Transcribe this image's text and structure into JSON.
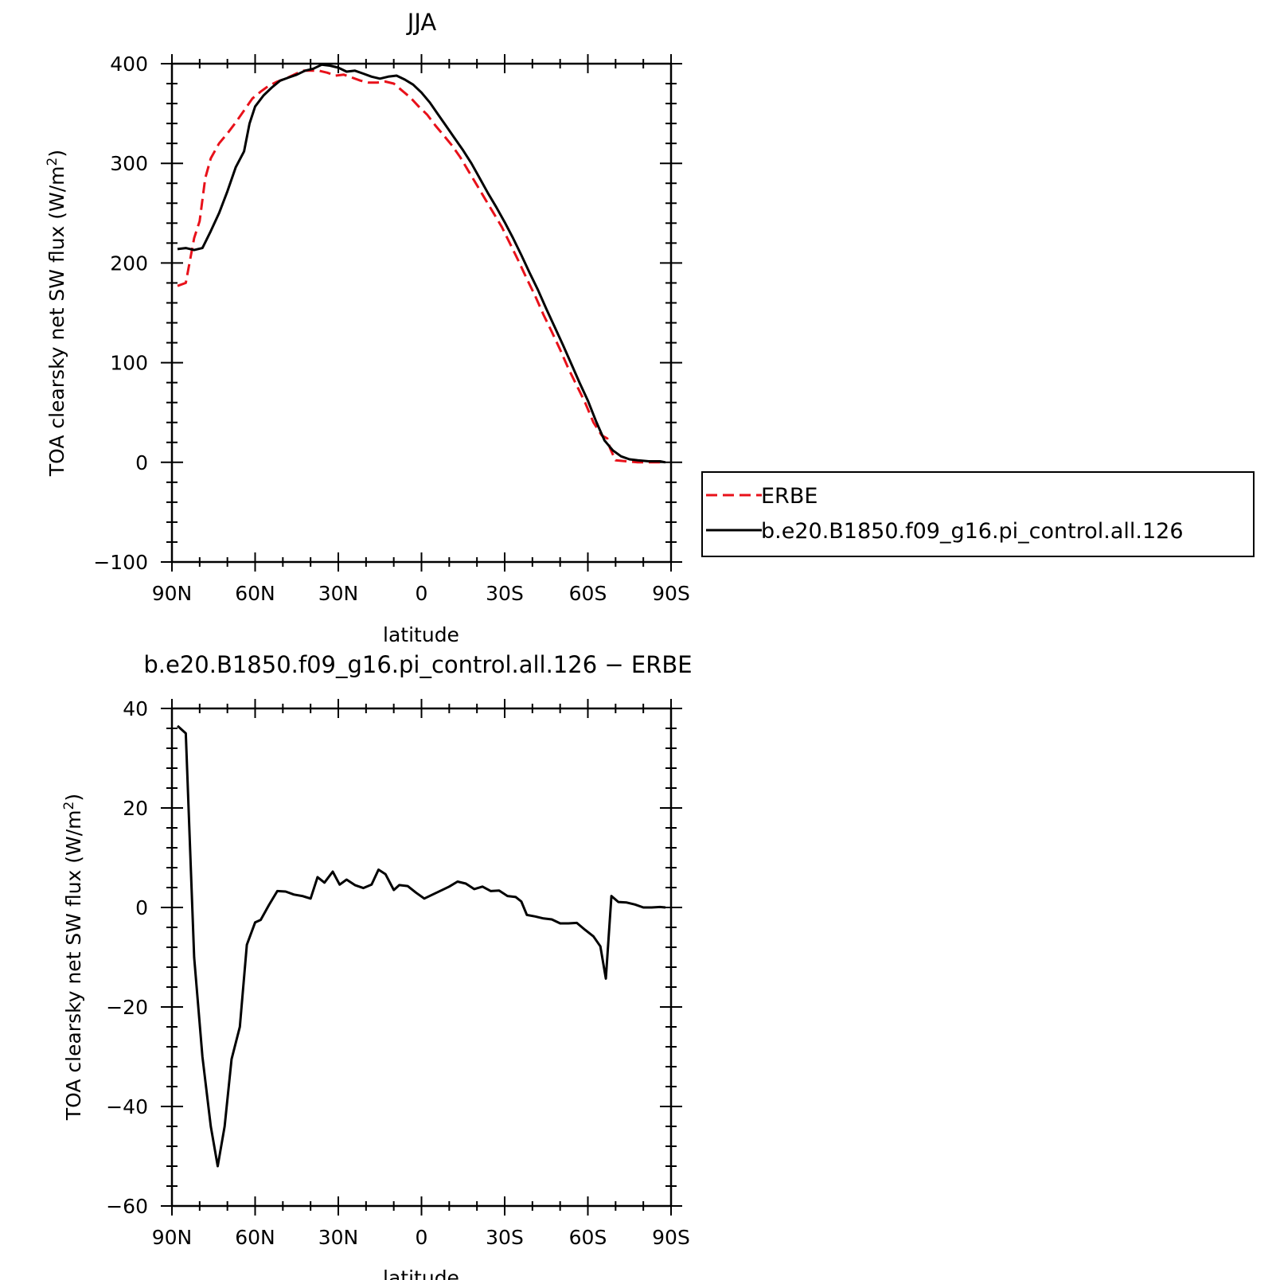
{
  "colors": {
    "background": "#ffffff",
    "axis": "#000000",
    "erbe": "#e8111a",
    "model": "#000000"
  },
  "chart_data": [
    {
      "type": "line",
      "title": "JJA",
      "xlabel": "latitude",
      "ylabel": "TOA clearsky net SW flux (W/m²)",
      "ylabel_main": "TOA clearsky net SW flux (W/m",
      "ylabel_sup": "2",
      "ylabel_close": ")",
      "xlim": [
        90,
        -90
      ],
      "ylim": [
        -100,
        400
      ],
      "grid": false,
      "legend_position": "right",
      "xticks": [
        {
          "value": 90,
          "label": "90N"
        },
        {
          "value": 60,
          "label": "60N"
        },
        {
          "value": 30,
          "label": "30N"
        },
        {
          "value": 0,
          "label": "0"
        },
        {
          "value": -30,
          "label": "30S"
        },
        {
          "value": -60,
          "label": "60S"
        },
        {
          "value": -90,
          "label": "90S"
        }
      ],
      "yticks": [
        {
          "value": 400,
          "label": "400"
        },
        {
          "value": 300,
          "label": "300"
        },
        {
          "value": 200,
          "label": "200"
        },
        {
          "value": 100,
          "label": "100"
        },
        {
          "value": 0,
          "label": "0"
        },
        {
          "value": -100,
          "label": "−100"
        }
      ],
      "series": [
        {
          "name": "ERBE",
          "color": "#e8111a",
          "dashed": true,
          "points": [
            [
              88,
              177
            ],
            [
              85,
              180
            ],
            [
              82,
              225
            ],
            [
              80,
              242
            ],
            [
              78,
              285
            ],
            [
              76,
              305
            ],
            [
              73,
              320
            ],
            [
              70,
              330
            ],
            [
              67,
              341
            ],
            [
              64,
              353
            ],
            [
              61,
              365
            ],
            [
              58,
              372
            ],
            [
              55,
              378
            ],
            [
              52,
              382
            ],
            [
              49,
              385
            ],
            [
              46,
              389
            ],
            [
              43,
              393
            ],
            [
              40,
              393
            ],
            [
              37,
              393
            ],
            [
              34,
              391
            ],
            [
              31,
              388
            ],
            [
              28,
              389
            ],
            [
              25,
              386
            ],
            [
              22,
              383
            ],
            [
              19,
              381
            ],
            [
              16,
              381
            ],
            [
              13,
              382
            ],
            [
              10,
              380
            ],
            [
              7,
              373
            ],
            [
              4,
              366
            ],
            [
              1,
              357
            ],
            [
              -2,
              349
            ],
            [
              -5,
              338
            ],
            [
              -8,
              328
            ],
            [
              -11,
              318
            ],
            [
              -14,
              306
            ],
            [
              -17,
              292
            ],
            [
              -20,
              278
            ],
            [
              -23,
              264
            ],
            [
              -26,
              250
            ],
            [
              -29,
              236
            ],
            [
              -32,
              219
            ],
            [
              -35,
              202
            ],
            [
              -38,
              184
            ],
            [
              -41,
              167
            ],
            [
              -44,
              148
            ],
            [
              -47,
              131
            ],
            [
              -50,
              113
            ],
            [
              -53,
              94
            ],
            [
              -56,
              77
            ],
            [
              -59,
              60
            ],
            [
              -62,
              40
            ],
            [
              -65,
              27
            ],
            [
              -67,
              24
            ],
            [
              -68,
              14
            ],
            [
              -70,
              2
            ],
            [
              -74,
              1
            ],
            [
              -78,
              0
            ],
            [
              -82,
              0
            ],
            [
              -88,
              0
            ]
          ]
        },
        {
          "name": "b.e20.B1850.f09_g16.pi_control.all.126",
          "color": "#000000",
          "dashed": false,
          "points": [
            [
              88,
              214
            ],
            [
              85,
              215
            ],
            [
              82,
              213
            ],
            [
              79,
              215
            ],
            [
              76,
              232
            ],
            [
              73,
              250
            ],
            [
              70,
              272
            ],
            [
              67,
              296
            ],
            [
              64,
              312
            ],
            [
              62,
              340
            ],
            [
              60,
              357
            ],
            [
              57,
              368
            ],
            [
              54,
              376
            ],
            [
              51,
              383
            ],
            [
              48,
              386
            ],
            [
              45,
              389
            ],
            [
              42,
              393
            ],
            [
              39,
              395
            ],
            [
              36,
              399
            ],
            [
              33,
              398
            ],
            [
              30,
              396
            ],
            [
              27,
              392
            ],
            [
              24,
              393
            ],
            [
              21,
              390
            ],
            [
              18,
              387
            ],
            [
              15,
              385
            ],
            [
              12,
              387
            ],
            [
              9,
              388
            ],
            [
              6,
              384
            ],
            [
              3,
              379
            ],
            [
              0,
              371
            ],
            [
              -3,
              361
            ],
            [
              -6,
              349
            ],
            [
              -9,
              337
            ],
            [
              -12,
              325
            ],
            [
              -15,
              313
            ],
            [
              -18,
              300
            ],
            [
              -21,
              285
            ],
            [
              -24,
              270
            ],
            [
              -27,
              256
            ],
            [
              -30,
              241
            ],
            [
              -33,
              225
            ],
            [
              -36,
              208
            ],
            [
              -39,
              190
            ],
            [
              -42,
              173
            ],
            [
              -45,
              154
            ],
            [
              -48,
              136
            ],
            [
              -51,
              118
            ],
            [
              -54,
              99
            ],
            [
              -57,
              80
            ],
            [
              -60,
              62
            ],
            [
              -63,
              41
            ],
            [
              -66,
              22
            ],
            [
              -69,
              12
            ],
            [
              -72,
              6
            ],
            [
              -75,
              3
            ],
            [
              -78,
              2
            ],
            [
              -82,
              1
            ],
            [
              -86,
              1
            ],
            [
              -88,
              0
            ]
          ]
        }
      ]
    },
    {
      "type": "line",
      "title": "b.e20.B1850.f09_g16.pi_control.all.126 − ERBE",
      "xlabel": "latitude",
      "ylabel": "TOA clearsky net SW flux (W/m²)",
      "ylabel_main": "TOA clearsky net SW flux (W/m",
      "ylabel_sup": "2",
      "ylabel_close": ")",
      "xlim": [
        90,
        -90
      ],
      "ylim": [
        -60,
        40
      ],
      "grid": false,
      "xticks": [
        {
          "value": 90,
          "label": "90N"
        },
        {
          "value": 60,
          "label": "60N"
        },
        {
          "value": 30,
          "label": "30N"
        },
        {
          "value": 0,
          "label": "0"
        },
        {
          "value": -30,
          "label": "30S"
        },
        {
          "value": -60,
          "label": "60S"
        },
        {
          "value": -90,
          "label": "90S"
        }
      ],
      "yticks": [
        {
          "value": 40,
          "label": "40"
        },
        {
          "value": 20,
          "label": "20"
        },
        {
          "value": 0,
          "label": "0"
        },
        {
          "value": -20,
          "label": "−20"
        },
        {
          "value": -40,
          "label": "−40"
        },
        {
          "value": -60,
          "label": "−60"
        }
      ],
      "series": [
        {
          "color": "#000000",
          "dashed": false,
          "points": [
            [
              88,
              36.5
            ],
            [
              85,
              35
            ],
            [
              82,
              -10
            ],
            [
              79,
              -30
            ],
            [
              76,
              -44
            ],
            [
              73.5,
              -52
            ],
            [
              71,
              -44
            ],
            [
              68.5,
              -30.5
            ],
            [
              65.5,
              -24
            ],
            [
              63,
              -7.5
            ],
            [
              60,
              -3
            ],
            [
              58,
              -2.5
            ],
            [
              55,
              0.5
            ],
            [
              52,
              3.3
            ],
            [
              49,
              3.2
            ],
            [
              46,
              2.6
            ],
            [
              43,
              2.3
            ],
            [
              40,
              1.8
            ],
            [
              37.5,
              6.1
            ],
            [
              35,
              5
            ],
            [
              32,
              7.2
            ],
            [
              29.5,
              4.6
            ],
            [
              27,
              5.6
            ],
            [
              24,
              4.5
            ],
            [
              21,
              3.9
            ],
            [
              18,
              4.6
            ],
            [
              15.5,
              7.6
            ],
            [
              13,
              6.7
            ],
            [
              10,
              3.5
            ],
            [
              8,
              4.5
            ],
            [
              5,
              4.3
            ],
            [
              2,
              3
            ],
            [
              -1,
              1.8
            ],
            [
              -4,
              2.6
            ],
            [
              -7,
              3.4
            ],
            [
              -10,
              4.2
            ],
            [
              -13,
              5.2
            ],
            [
              -16,
              4.8
            ],
            [
              -19,
              3.7
            ],
            [
              -22,
              4.2
            ],
            [
              -25,
              3.3
            ],
            [
              -28,
              3.4
            ],
            [
              -31,
              2.3
            ],
            [
              -34,
              2.1
            ],
            [
              -36,
              1.2
            ],
            [
              -38,
              -1.5
            ],
            [
              -41,
              -1.8
            ],
            [
              -44,
              -2.2
            ],
            [
              -47,
              -2.4
            ],
            [
              -50,
              -3.2
            ],
            [
              -53,
              -3.2
            ],
            [
              -56,
              -3.1
            ],
            [
              -59,
              -4.5
            ],
            [
              -62,
              -5.8
            ],
            [
              -64.5,
              -7.8
            ],
            [
              -66.5,
              -14.3
            ],
            [
              -68.5,
              2.3
            ],
            [
              -71,
              1.1
            ],
            [
              -74,
              1
            ],
            [
              -77,
              0.6
            ],
            [
              -80,
              0
            ],
            [
              -83,
              0
            ],
            [
              -86,
              0.1
            ],
            [
              -88,
              0
            ]
          ]
        }
      ]
    }
  ]
}
